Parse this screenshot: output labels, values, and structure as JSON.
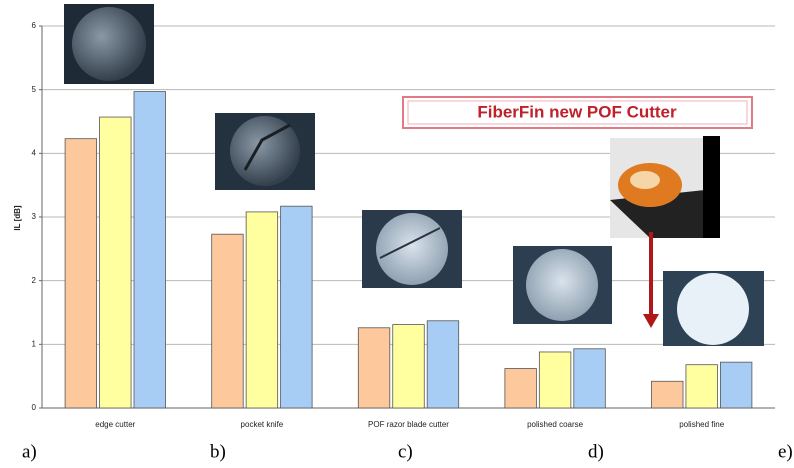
{
  "chart_data": {
    "type": "bar",
    "y_label": "IL [dB]",
    "categories": [
      "edge cutter",
      "pocket knife",
      "POF razor blade cutter",
      "polished coarse",
      "polished fine"
    ],
    "series": [
      {
        "color": "#fcc89c",
        "values": [
          4.23,
          2.73,
          1.26,
          0.62,
          0.42
        ]
      },
      {
        "color": "#ffffa0",
        "values": [
          4.57,
          3.08,
          1.31,
          0.88,
          0.68
        ]
      },
      {
        "color": "#a8cdf5",
        "values": [
          4.97,
          3.17,
          1.37,
          0.93,
          0.72
        ]
      }
    ],
    "ylim": [
      0,
      6
    ],
    "yticks": [
      0,
      1,
      2,
      3,
      4,
      5,
      6
    ],
    "grid": true,
    "callout": "FiberFin new POF Cutter",
    "panel_labels": [
      "a)",
      "b)",
      "c)",
      "d)",
      "e)"
    ]
  }
}
